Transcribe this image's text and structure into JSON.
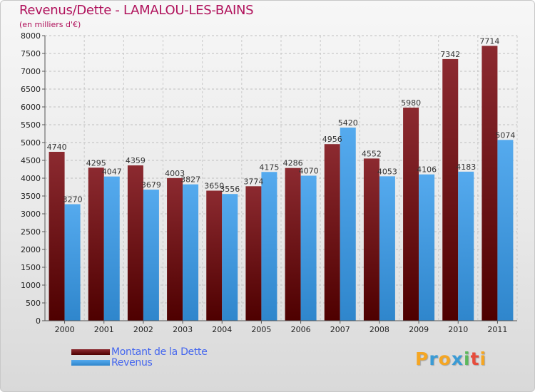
{
  "title": "Revenus/Dette - LAMALOU-LES-BAINS",
  "subtitle": "(en milliers d'€)",
  "chart_data": {
    "type": "bar",
    "categories": [
      "2000",
      "2001",
      "2002",
      "2003",
      "2004",
      "2005",
      "2006",
      "2007",
      "2008",
      "2009",
      "2010",
      "2011"
    ],
    "series": [
      {
        "name": "Montant de la Dette",
        "color": "#7a1f24",
        "values": [
          4740,
          4295,
          4359,
          4003,
          3650,
          3774,
          4286,
          4956,
          4552,
          5980,
          7342,
          7714
        ]
      },
      {
        "name": "Revenus",
        "color": "#4da3e6",
        "values": [
          3270,
          4047,
          3679,
          3827,
          3556,
          4175,
          4070,
          5420,
          4053,
          4106,
          4183,
          5074
        ]
      }
    ],
    "ylim": [
      0,
      8000
    ],
    "yticks": [
      0,
      500,
      1000,
      1500,
      2000,
      2500,
      3000,
      3500,
      4000,
      4500,
      5000,
      5500,
      6000,
      6500,
      7000,
      7500,
      8000
    ],
    "grid": true,
    "data_labels": true,
    "legend_position": "bottom-left"
  },
  "legend": [
    {
      "label": "Montant de la Dette",
      "color": "#7a1f24"
    },
    {
      "label": "Revenus",
      "color": "#4da3e6"
    }
  ],
  "logo": {
    "letters": [
      "P",
      "r",
      "o",
      "x",
      "i",
      "t",
      "i"
    ],
    "colors": [
      "#f5a623",
      "#3a9bd5",
      "#f5a623",
      "#3a9bd5",
      "#5cb85c",
      "#e74c3c",
      "#f5a623"
    ]
  }
}
